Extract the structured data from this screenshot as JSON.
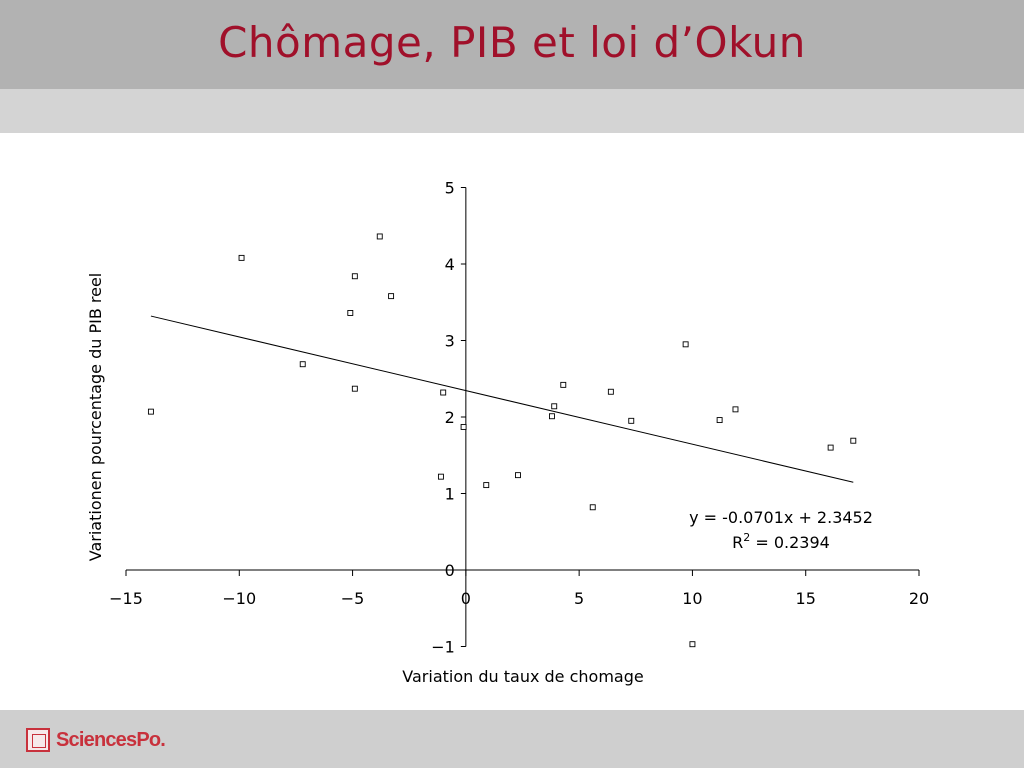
{
  "slide": {
    "title": "Chômage, PIB et loi d’Okun",
    "logo_text": "SciencesPo."
  },
  "chart_data": {
    "type": "scatter",
    "xlabel": "Variation du taux de chomage",
    "ylabel": "Variationen pourcentage du PIB reel",
    "xlim": [
      -15,
      20
    ],
    "ylim": [
      -1,
      5
    ],
    "xticks": [
      -15,
      -10,
      -5,
      0,
      5,
      10,
      15,
      20
    ],
    "yticks": [
      -1,
      0,
      1,
      2,
      3,
      4,
      5
    ],
    "points": [
      [
        -13.9,
        2.07
      ],
      [
        -9.9,
        4.08
      ],
      [
        -7.2,
        2.69
      ],
      [
        -5.1,
        3.36
      ],
      [
        -4.9,
        3.84
      ],
      [
        -4.9,
        2.37
      ],
      [
        -3.8,
        4.36
      ],
      [
        -3.3,
        3.58
      ],
      [
        -1.0,
        2.32
      ],
      [
        -1.1,
        1.22
      ],
      [
        -0.1,
        1.87
      ],
      [
        0.9,
        1.11
      ],
      [
        2.3,
        1.24
      ],
      [
        3.8,
        2.01
      ],
      [
        3.9,
        2.14
      ],
      [
        4.3,
        2.42
      ],
      [
        5.6,
        0.82
      ],
      [
        6.4,
        2.33
      ],
      [
        7.3,
        1.95
      ],
      [
        9.7,
        2.95
      ],
      [
        10.0,
        -0.97
      ],
      [
        11.2,
        1.96
      ],
      [
        11.9,
        2.1
      ],
      [
        16.1,
        1.6
      ],
      [
        17.1,
        1.69
      ]
    ],
    "trendline": {
      "equation": "y = -0.0701x + 2.3452",
      "r2_label": "R",
      "r2_sup": "2",
      "r2_value": " = 0.2394",
      "slope": -0.0701,
      "intercept": 2.3452,
      "x_from": -13.9,
      "x_to": 17.1
    },
    "grid": false,
    "legend": "none"
  },
  "colors": {
    "title": "#a0102a",
    "header_bar": "#b2b2b2",
    "subheader_bar": "#d4d4d4",
    "footer_bar": "#cfcfcf",
    "brand": "#c8313c"
  }
}
